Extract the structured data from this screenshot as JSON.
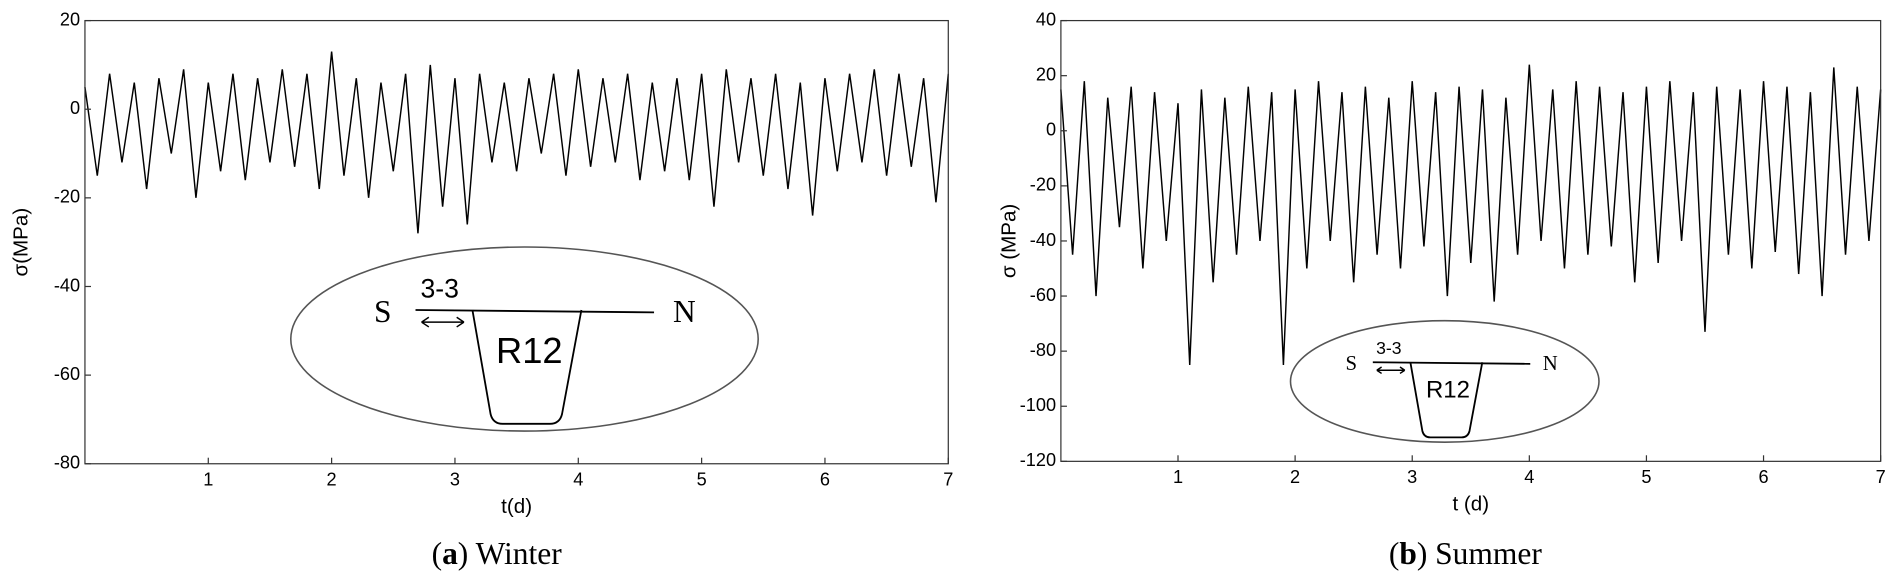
{
  "chart_data": [
    {
      "type": "line",
      "x_label": "t(d)",
      "y_label": "σ(MPa)",
      "caption": [
        "(",
        "a",
        ") Winter"
      ],
      "inset": {
        "start": "S",
        "section": "3-3",
        "rib": "R12",
        "end": "N"
      },
      "xlim": [
        0,
        7
      ],
      "xticks": [
        1,
        2,
        3,
        4,
        5,
        6,
        7
      ],
      "ylim": [
        -80,
        20
      ],
      "yticks": [
        20,
        0,
        -20,
        -40,
        -60,
        -80
      ],
      "series": [
        {
          "color": "#000000",
          "x": [
            0,
            0.1,
            0.2,
            0.3,
            0.4,
            0.5,
            0.6,
            0.7,
            0.8,
            0.9,
            1,
            1.1,
            1.2,
            1.3,
            1.4,
            1.5,
            1.6,
            1.7,
            1.8,
            1.9,
            2,
            2.1,
            2.2,
            2.3,
            2.4,
            2.5,
            2.6,
            2.7,
            2.8,
            2.9,
            3,
            3.1,
            3.2,
            3.3,
            3.4,
            3.5,
            3.6,
            3.7,
            3.8,
            3.9,
            4,
            4.1,
            4.2,
            4.3,
            4.4,
            4.5,
            4.6,
            4.7,
            4.8,
            4.9,
            5,
            5.1,
            5.2,
            5.3,
            5.4,
            5.5,
            5.6,
            5.7,
            5.8,
            5.9,
            6,
            6.1,
            6.2,
            6.3,
            6.4,
            6.5,
            6.6,
            6.7,
            6.8,
            6.9,
            7
          ],
          "values": [
            5,
            -15,
            8,
            -12,
            6,
            -18,
            7,
            -10,
            9,
            -20,
            6,
            -14,
            8,
            -16,
            7,
            -12,
            9,
            -13,
            8,
            -18,
            13,
            -15,
            7,
            -20,
            6,
            -14,
            8,
            -28,
            10,
            -22,
            7,
            -26,
            8,
            -12,
            6,
            -14,
            7,
            -10,
            8,
            -15,
            9,
            -13,
            7,
            -12,
            8,
            -16,
            6,
            -14,
            7,
            -16,
            8,
            -22,
            9,
            -12,
            7,
            -15,
            8,
            -18,
            6,
            -24,
            7,
            -14,
            8,
            -12,
            9,
            -15,
            8,
            -13,
            7,
            -21,
            8
          ]
        }
      ]
    },
    {
      "type": "line",
      "x_label": "t (d)",
      "y_label": "σ (MPa)",
      "caption": [
        "(",
        "b",
        ") Summer"
      ],
      "inset": {
        "start": "S",
        "section": "3-3",
        "rib": "R12",
        "end": "N"
      },
      "xlim": [
        0,
        7
      ],
      "xticks": [
        1,
        2,
        3,
        4,
        5,
        6,
        7
      ],
      "ylim": [
        -120,
        40
      ],
      "yticks": [
        40,
        20,
        0,
        -20,
        -40,
        -60,
        -80,
        -100,
        -120
      ],
      "series": [
        {
          "color": "#000000",
          "x": [
            0,
            0.1,
            0.2,
            0.3,
            0.4,
            0.5,
            0.6,
            0.7,
            0.8,
            0.9,
            1,
            1.1,
            1.2,
            1.3,
            1.4,
            1.5,
            1.6,
            1.7,
            1.8,
            1.9,
            2,
            2.1,
            2.2,
            2.3,
            2.4,
            2.5,
            2.6,
            2.7,
            2.8,
            2.9,
            3,
            3.1,
            3.2,
            3.3,
            3.4,
            3.5,
            3.6,
            3.7,
            3.8,
            3.9,
            4,
            4.1,
            4.2,
            4.3,
            4.4,
            4.5,
            4.6,
            4.7,
            4.8,
            4.9,
            5,
            5.1,
            5.2,
            5.3,
            5.4,
            5.5,
            5.6,
            5.7,
            5.8,
            5.9,
            6,
            6.1,
            6.2,
            6.3,
            6.4,
            6.5,
            6.6,
            6.7,
            6.8,
            6.9,
            7
          ],
          "values": [
            15,
            -45,
            18,
            -60,
            12,
            -35,
            16,
            -50,
            14,
            -40,
            10,
            -85,
            15,
            -55,
            12,
            -45,
            16,
            -40,
            14,
            -85,
            15,
            -50,
            18,
            -40,
            14,
            -55,
            16,
            -45,
            12,
            -50,
            18,
            -42,
            14,
            -60,
            16,
            -48,
            15,
            -62,
            12,
            -45,
            24,
            -40,
            15,
            -50,
            18,
            -45,
            16,
            -42,
            14,
            -55,
            16,
            -48,
            18,
            -40,
            14,
            -73,
            16,
            -45,
            15,
            -50,
            18,
            -44,
            16,
            -52,
            14,
            -60,
            23,
            -45,
            16,
            -40,
            15
          ]
        }
      ]
    }
  ]
}
